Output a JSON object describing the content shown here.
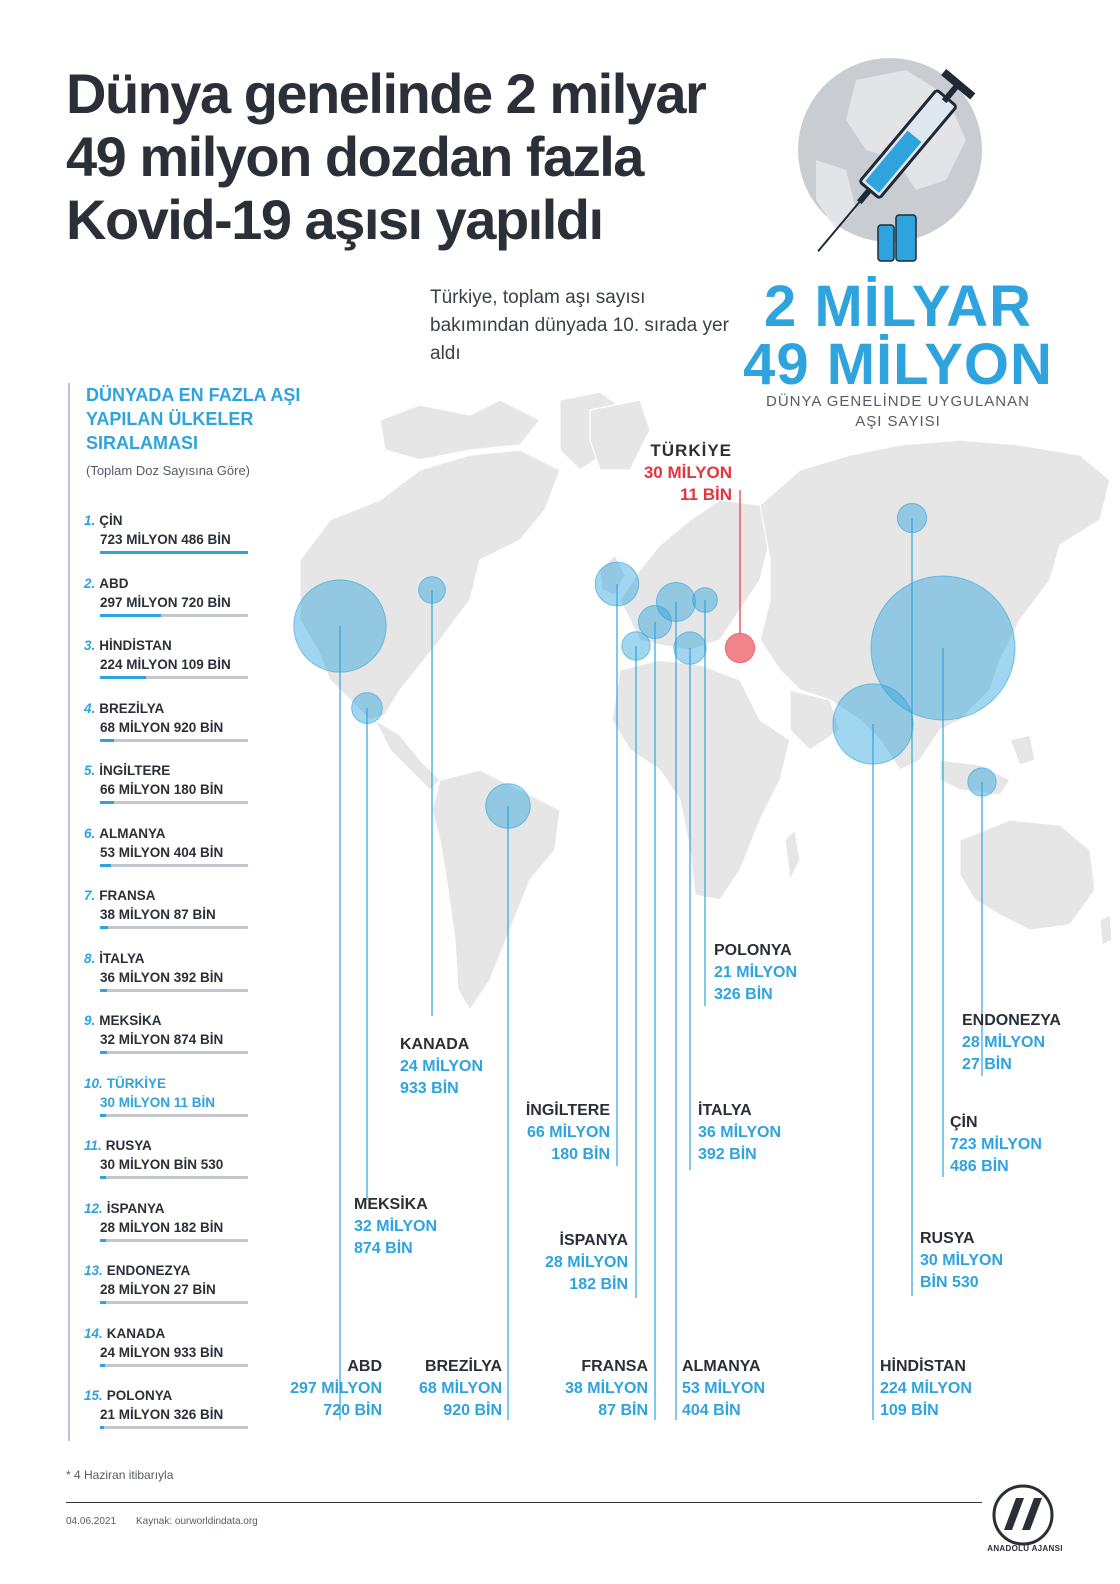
{
  "title": "Dünya genelinde 2 milyar 49 milyon dozdan fazla Kovid-19 aşısı yapıldı",
  "subtitle": "Türkiye, toplam aşı sayısı bakımından dünyada 10. sırada yer aldı",
  "headline_number": "2 MİLYAR 49 MİLYON",
  "headline_caption": "DÜNYA GENELİNDE UYGULANAN AŞI SAYISI",
  "ranking_title": "DÜNYADA EN FAZLA AŞI YAPILAN ÜLKELER SIRALAMASI",
  "ranking_note": "(Toplam Doz Sayısına Göre)",
  "turkey_callout": {
    "name": "TÜRKİYE",
    "line1": "30 MİLYON",
    "line2": "11 BİN"
  },
  "footnote": "* 4 Haziran itibarıyla",
  "date": "04.06.2021",
  "source": "Kaynak: ourworldindata.org",
  "logo_text": "ANADOLU AJANSI",
  "colors": {
    "accent": "#2fa3dd",
    "highlight": "#e5343d",
    "dark": "#2b2f38",
    "map": "#e6e6e6"
  },
  "chart_data": {
    "type": "bubble-map",
    "unit": "doz",
    "rows": [
      {
        "rank": "1.",
        "country": "ÇİN",
        "label": "723 MİLYON 486 BİN",
        "value": 723486000,
        "highlight": false
      },
      {
        "rank": "2.",
        "country": "ABD",
        "label": "297 MİLYON 720 BİN",
        "value": 297720000,
        "highlight": false
      },
      {
        "rank": "3.",
        "country": "HİNDİSTAN",
        "label": "224 MİLYON 109 BİN",
        "value": 224109000,
        "highlight": false
      },
      {
        "rank": "4.",
        "country": "BREZİLYA",
        "label": "68 MİLYON 920 BİN",
        "value": 68920000,
        "highlight": false
      },
      {
        "rank": "5.",
        "country": "İNGİLTERE",
        "label": "66 MİLYON 180 BİN",
        "value": 66180000,
        "highlight": false
      },
      {
        "rank": "6.",
        "country": "ALMANYA",
        "label": "53 MİLYON 404 BİN",
        "value": 53404000,
        "highlight": false
      },
      {
        "rank": "7.",
        "country": "FRANSA",
        "label": "38 MİLYON 87 BİN",
        "value": 38087000,
        "highlight": false
      },
      {
        "rank": "8.",
        "country": "İTALYA",
        "label": "36 MİLYON 392 BİN",
        "value": 36392000,
        "highlight": false
      },
      {
        "rank": "9.",
        "country": "MEKSİKA",
        "label": "32 MİLYON 874 BİN",
        "value": 32874000,
        "highlight": false
      },
      {
        "rank": "10.",
        "country": "TÜRKİYE",
        "label": "30 MİLYON 11 BİN",
        "value": 30011000,
        "highlight": true
      },
      {
        "rank": "11.",
        "country": "RUSYA",
        "label": "30 MİLYON BİN 530",
        "value": 30001530,
        "highlight": false
      },
      {
        "rank": "12.",
        "country": "İSPANYA",
        "label": "28 MİLYON 182 BİN",
        "value": 28182000,
        "highlight": false
      },
      {
        "rank": "13.",
        "country": "ENDONEZYA",
        "label": "28 MİLYON 27 BİN",
        "value": 28027000,
        "highlight": false
      },
      {
        "rank": "14.",
        "country": "KANADA",
        "label": "24 MİLYON 933 BİN",
        "value": 24933000,
        "highlight": false
      },
      {
        "rank": "15.",
        "country": "POLONYA",
        "label": "21 MİLYON 326 BİN",
        "value": 21326000,
        "highlight": false
      }
    ],
    "map_labels": [
      {
        "country": "ABD",
        "line1": "297 MİLYON",
        "line2": "720 BİN"
      },
      {
        "country": "BREZİLYA",
        "line1": "68 MİLYON",
        "line2": "920 BİN"
      },
      {
        "country": "FRANSA",
        "line1": "38 MİLYON",
        "line2": "87 BİN"
      },
      {
        "country": "ALMANYA",
        "line1": "53 MİLYON",
        "line2": "404 BİN"
      },
      {
        "country": "HİNDİSTAN",
        "line1": "224 MİLYON",
        "line2": "109 BİN"
      },
      {
        "country": "MEKSİKA",
        "line1": "32 MİLYON",
        "line2": "874 BİN"
      },
      {
        "country": "KANADA",
        "line1": "24 MİLYON",
        "line2": "933 BİN"
      },
      {
        "country": "İNGİLTERE",
        "line1": "66 MİLYON",
        "line2": "180 BİN"
      },
      {
        "country": "İSPANYA",
        "line1": "28 MİLYON",
        "line2": "182 BİN"
      },
      {
        "country": "POLONYA",
        "line1": "21 MİLYON",
        "line2": "326 BİN"
      },
      {
        "country": "İTALYA",
        "line1": "36 MİLYON",
        "line2": "392 BİN"
      },
      {
        "country": "ENDONEZYA",
        "line1": "28 MİLYON",
        "line2": "27 BİN"
      },
      {
        "country": "ÇİN",
        "line1": "723 MİLYON",
        "line2": "486 BİN"
      },
      {
        "country": "RUSYA",
        "line1": "30 MİLYON",
        "line2": "BİN 530"
      }
    ]
  }
}
